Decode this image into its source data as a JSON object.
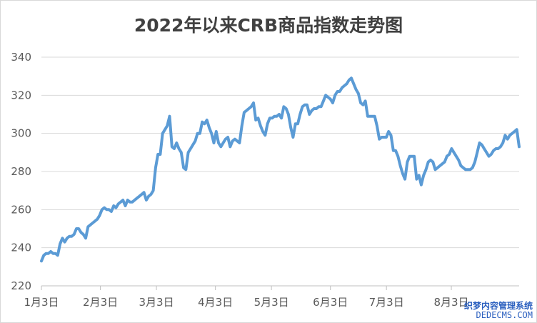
{
  "chart_data": {
    "type": "line",
    "title": "2022年以来CRB商品指数走势图",
    "xlabel": "",
    "ylabel": "",
    "ylim": [
      220,
      340
    ],
    "yticks": [
      220,
      240,
      260,
      280,
      300,
      320,
      340
    ],
    "xlim": [
      0,
      162
    ],
    "xticks": [
      {
        "label": "1月3日",
        "pos": 0
      },
      {
        "label": "2月3日",
        "pos": 20
      },
      {
        "label": "3月3日",
        "pos": 39
      },
      {
        "label": "4月3日",
        "pos": 59
      },
      {
        "label": "5月3日",
        "pos": 78
      },
      {
        "label": "6月3日",
        "pos": 98
      },
      {
        "label": "7月3日",
        "pos": 117
      },
      {
        "label": "8月3日",
        "pos": 139
      }
    ],
    "grid": true,
    "line_color": "#5b9bd5",
    "series": [
      {
        "values": [
          233,
          236,
          237,
          237,
          238,
          237,
          237,
          236,
          242,
          245,
          243,
          245,
          246,
          246,
          247,
          250,
          250,
          248,
          247,
          245,
          251,
          252,
          253,
          254,
          255,
          257,
          260,
          261,
          260,
          260,
          259,
          262,
          261,
          263,
          264,
          265,
          262,
          265,
          264,
          264,
          265,
          266,
          267,
          268,
          269,
          265,
          267,
          268,
          270,
          282,
          289,
          289,
          300,
          302,
          304,
          309,
          293,
          292,
          295,
          292,
          290,
          282,
          281,
          290,
          292,
          294,
          296,
          300,
          300,
          306,
          305,
          307,
          303,
          300,
          295,
          301,
          295,
          293,
          295,
          297,
          298,
          293,
          296,
          297,
          296,
          295,
          304,
          311,
          312,
          313,
          314,
          316,
          307,
          308,
          304,
          301,
          299,
          305,
          308,
          308,
          309,
          309,
          310,
          308,
          314,
          313,
          310,
          303,
          298,
          305,
          305,
          310,
          314,
          315,
          315,
          310,
          312,
          313,
          313,
          314,
          314,
          317,
          320,
          319,
          318,
          316,
          320,
          322,
          322,
          324,
          325,
          326,
          328,
          329,
          326,
          323,
          321,
          316,
          315,
          317,
          309,
          309,
          309,
          309,
          304,
          297,
          298,
          298,
          298,
          301,
          299,
          291,
          291,
          288,
          283,
          279,
          276,
          285,
          288,
          288,
          288,
          276,
          278,
          273,
          278,
          281,
          285,
          286,
          285,
          281,
          282,
          283,
          284,
          285,
          288,
          289,
          292,
          290,
          288,
          286,
          283,
          282,
          281,
          281,
          281,
          282,
          285,
          290,
          295,
          294,
          292,
          290,
          288,
          289,
          291,
          292,
          292,
          293,
          295,
          299,
          297,
          299,
          300,
          301,
          302,
          293
        ]
      }
    ]
  },
  "watermark": {
    "line1": "织梦内容管理系统",
    "line2": "DEDECMS.COM"
  }
}
